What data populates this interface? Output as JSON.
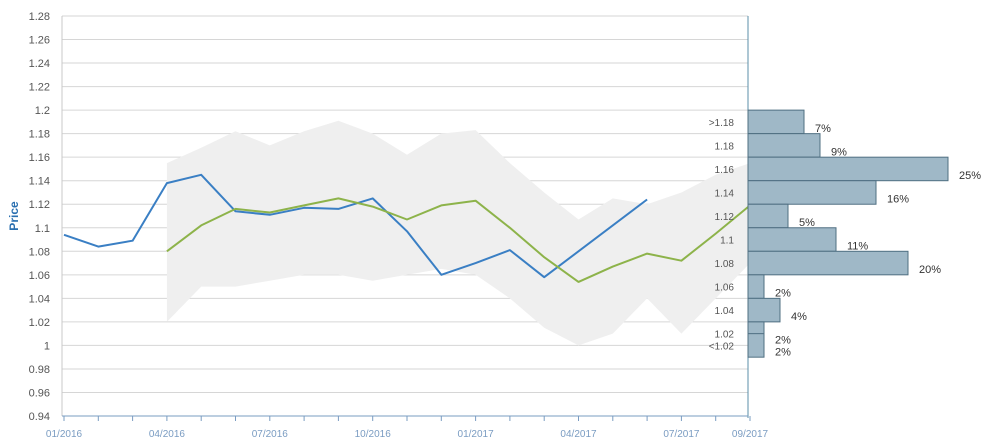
{
  "chart_data": {
    "type": "line",
    "title": "",
    "ylabel": "Price",
    "ylim": [
      0.94,
      1.28
    ],
    "yticks": [
      "0.94",
      "0.96",
      "0.98",
      "1",
      "1.02",
      "1.04",
      "1.06",
      "1.08",
      "1.1",
      "1.12",
      "1.14",
      "1.16",
      "1.18",
      "1.2",
      "1.22",
      "1.24",
      "1.26",
      "1.28"
    ],
    "xticks": [
      "01/2016",
      "04/2016",
      "07/2016",
      "10/2016",
      "01/2017",
      "04/2017",
      "07/2017",
      "09/2017"
    ],
    "grid": true,
    "series": [
      {
        "color": "#3a7fc4",
        "points": [
          [
            "01/2016",
            1.094
          ],
          [
            "02/2016",
            1.084
          ],
          [
            "03/2016",
            1.089
          ],
          [
            "04/2016",
            1.138
          ],
          [
            "05/2016",
            1.145
          ],
          [
            "06/2016",
            1.114
          ],
          [
            "07/2016",
            1.111
          ],
          [
            "08/2016",
            1.117
          ],
          [
            "09/2016",
            1.116
          ],
          [
            "10/2016",
            1.125
          ],
          [
            "11/2016",
            1.097
          ],
          [
            "12/2016",
            1.06
          ],
          [
            "01/2017",
            1.07
          ],
          [
            "02/2017",
            1.081
          ],
          [
            "03/2017",
            1.058
          ],
          [
            "06/2017",
            1.124
          ]
        ]
      },
      {
        "color": "#8db34a",
        "points": [
          [
            "04/2016",
            1.08
          ],
          [
            "05/2016",
            1.102
          ],
          [
            "06/2016",
            1.116
          ],
          [
            "07/2016",
            1.113
          ],
          [
            "08/2016",
            1.119
          ],
          [
            "09/2016",
            1.125
          ],
          [
            "10/2016",
            1.118
          ],
          [
            "11/2016",
            1.107
          ],
          [
            "12/2016",
            1.119
          ],
          [
            "01/2017",
            1.123
          ],
          [
            "02/2017",
            1.1
          ],
          [
            "03/2017",
            1.075
          ],
          [
            "04/2017",
            1.054
          ],
          [
            "05/2017",
            1.067
          ],
          [
            "06/2017",
            1.078
          ],
          [
            "07/2017",
            1.072
          ],
          [
            "08/2017",
            1.095
          ],
          [
            "09/2017",
            1.119
          ]
        ]
      }
    ],
    "band": {
      "color": "#efefef",
      "upper": [
        [
          "04/2016",
          1.155
        ],
        [
          "05/2016",
          1.168
        ],
        [
          "06/2016",
          1.182
        ],
        [
          "07/2016",
          1.17
        ],
        [
          "08/2016",
          1.182
        ],
        [
          "09/2016",
          1.191
        ],
        [
          "10/2016",
          1.18
        ],
        [
          "11/2016",
          1.162
        ],
        [
          "12/2016",
          1.18
        ],
        [
          "01/2017",
          1.183
        ],
        [
          "02/2017",
          1.155
        ],
        [
          "03/2017",
          1.13
        ],
        [
          "04/2017",
          1.107
        ],
        [
          "05/2017",
          1.125
        ],
        [
          "06/2017",
          1.12
        ],
        [
          "07/2017",
          1.13
        ],
        [
          "08/2017",
          1.145
        ],
        [
          "09/2017",
          1.155
        ]
      ],
      "lower": [
        [
          "04/2016",
          1.02
        ],
        [
          "05/2016",
          1.05
        ],
        [
          "06/2016",
          1.05
        ],
        [
          "07/2016",
          1.055
        ],
        [
          "08/2016",
          1.06
        ],
        [
          "09/2016",
          1.06
        ],
        [
          "10/2016",
          1.055
        ],
        [
          "11/2016",
          1.06
        ],
        [
          "12/2016",
          1.065
        ],
        [
          "01/2017",
          1.06
        ],
        [
          "02/2017",
          1.04
        ],
        [
          "03/2017",
          1.015
        ],
        [
          "04/2017",
          1.0
        ],
        [
          "05/2017",
          1.01
        ],
        [
          "06/2017",
          1.04
        ],
        [
          "07/2017",
          1.01
        ],
        [
          "08/2017",
          1.04
        ],
        [
          "09/2017",
          1.07
        ]
      ]
    },
    "histogram": {
      "type": "bar",
      "color": "#9fb8c7",
      "bins": [
        {
          "label": ">1.18",
          "value": 7,
          "text": "7%",
          "center": 1.19
        },
        {
          "label": "1.18",
          "value": 9,
          "text": "9%",
          "center": 1.17
        },
        {
          "label": "1.16",
          "value": 25,
          "text": "25%",
          "center": 1.15
        },
        {
          "label": "1.14",
          "value": 16,
          "text": "16%",
          "center": 1.13
        },
        {
          "label": "1.12",
          "value": 5,
          "text": "5%",
          "center": 1.11
        },
        {
          "label": "1.1",
          "value": 11,
          "text": "11%",
          "center": 1.09
        },
        {
          "label": "1.08",
          "value": 20,
          "text": "20%",
          "center": 1.07
        },
        {
          "label": "1.06",
          "value": 2,
          "text": "2%",
          "center": 1.05
        },
        {
          "label": "1.04",
          "value": 4,
          "text": "4%",
          "center": 1.03
        },
        {
          "label": "1.02",
          "value": 2,
          "text": "2%",
          "center": 1.01
        },
        {
          "label": "<1.02",
          "value": 2,
          "text": "2%",
          "center": 1.0
        }
      ]
    }
  }
}
